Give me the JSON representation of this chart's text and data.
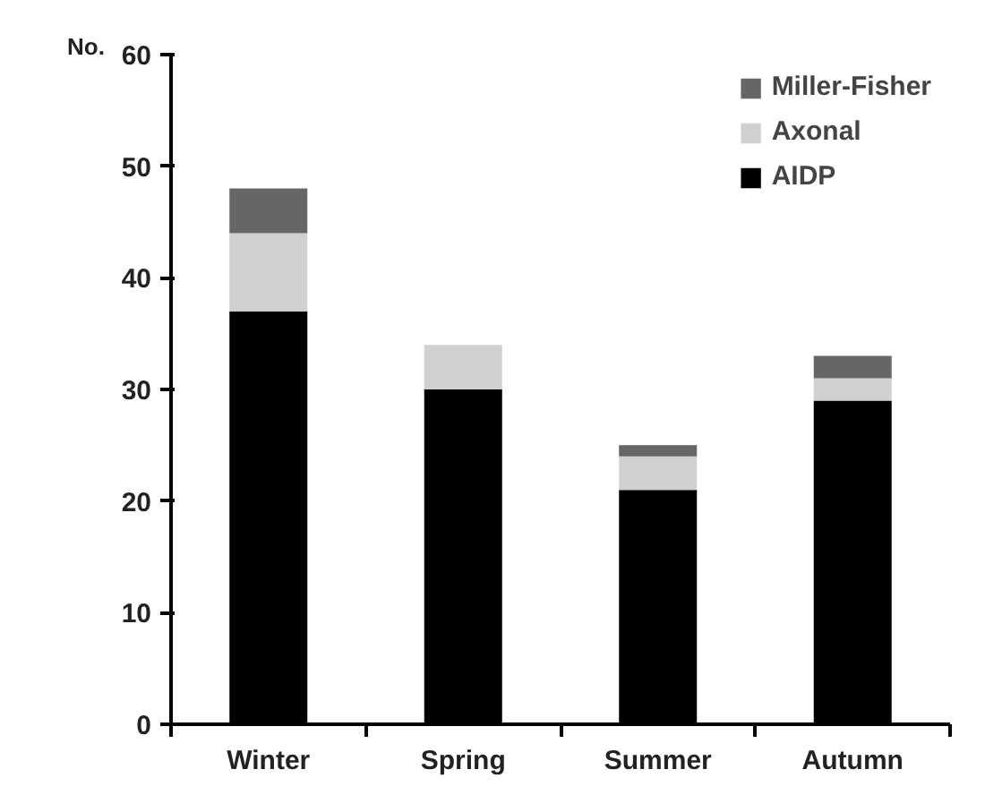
{
  "chart_data": {
    "type": "bar",
    "stacked": true,
    "ylabel": "No.",
    "categories": [
      "Winter",
      "Spring",
      "Summer",
      "Autumn"
    ],
    "series": [
      {
        "name": "AIDP",
        "color": "#000000",
        "values": [
          37,
          30,
          21,
          29
        ]
      },
      {
        "name": "Axonal",
        "color": "#d0d0d0",
        "values": [
          7,
          4,
          3,
          2
        ]
      },
      {
        "name": "Miller-Fisher",
        "color": "#666666",
        "values": [
          4,
          0,
          1,
          2
        ]
      }
    ],
    "ylim": [
      0,
      60
    ],
    "yticks": [
      0,
      10,
      20,
      30,
      40,
      50,
      60
    ],
    "grid": false,
    "legend": "top right"
  }
}
